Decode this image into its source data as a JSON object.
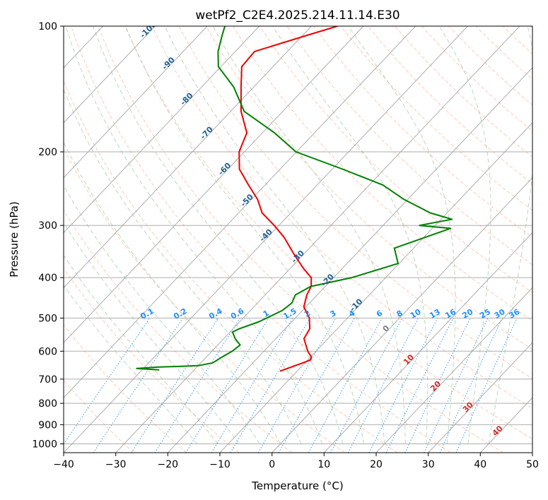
{
  "chart_data": {
    "type": "line",
    "subtype": "skew-T log-P sounding",
    "title": "wetPf2_C2E4.2025.214.11.14.E30",
    "xlabel": "Temperature (°C)",
    "ylabel": "Pressure (hPa)",
    "xlim": [
      -40,
      50
    ],
    "ylim": [
      1050,
      100
    ],
    "y_scale": "log",
    "x_ticks": [
      "−40",
      "−30",
      "−20",
      "−10",
      "0",
      "10",
      "20",
      "30",
      "40",
      "50"
    ],
    "y_ticks": [
      {
        "p": 100,
        "label": "100"
      },
      {
        "p": 200,
        "label": "200"
      },
      {
        "p": 300,
        "label": "300"
      },
      {
        "p": 400,
        "label": "400"
      },
      {
        "p": 500,
        "label": "500"
      },
      {
        "p": 600,
        "label": "600"
      },
      {
        "p": 700,
        "label": "700"
      },
      {
        "p": 800,
        "label": "800"
      },
      {
        "p": 900,
        "label": "900"
      },
      {
        "p": 1000,
        "label": "1000"
      }
    ],
    "grid": true,
    "colors": {
      "temperature": "#ee0000",
      "dewpoint": "#008000",
      "isotherm": "#a0a0a0",
      "dry_adiabat": "#ffa07a",
      "moist_adiabat": "#8fbc8f",
      "mixing_ratio": "#1e90ff"
    },
    "series": [
      {
        "key": "temperature",
        "color": "#ee0000",
        "points": [
          {
            "p": 670,
            "t": -13.3
          },
          {
            "p": 650,
            "t": -11.4
          },
          {
            "p": 640,
            "t": -10.4
          },
          {
            "p": 630,
            "t": -9.5
          },
          {
            "p": 620,
            "t": -9.8
          },
          {
            "p": 600,
            "t": -11.6
          },
          {
            "p": 560,
            "t": -14.6
          },
          {
            "p": 530,
            "t": -15.3
          },
          {
            "p": 500,
            "t": -17.3
          },
          {
            "p": 470,
            "t": -20.4
          },
          {
            "p": 440,
            "t": -22.0
          },
          {
            "p": 420,
            "t": -22.7
          },
          {
            "p": 400,
            "t": -24.3
          },
          {
            "p": 380,
            "t": -27.5
          },
          {
            "p": 350,
            "t": -32.1
          },
          {
            "p": 320,
            "t": -36.9
          },
          {
            "p": 300,
            "t": -40.9
          },
          {
            "p": 280,
            "t": -45.5
          },
          {
            "p": 260,
            "t": -48.8
          },
          {
            "p": 240,
            "t": -53.2
          },
          {
            "p": 220,
            "t": -57.8
          },
          {
            "p": 200,
            "t": -61.0
          },
          {
            "p": 180,
            "t": -63.0
          },
          {
            "p": 160,
            "t": -68.0
          },
          {
            "p": 140,
            "t": -72.4
          },
          {
            "p": 125,
            "t": -76.0
          },
          {
            "p": 115,
            "t": -76.3
          },
          {
            "p": 105,
            "t": -69.0
          },
          {
            "p": 100,
            "t": -65.0
          }
        ]
      },
      {
        "key": "dewpoint",
        "color": "#008000",
        "points": [
          {
            "p": 665,
            "t": -36.7
          },
          {
            "p": 660,
            "t": -41.3
          },
          {
            "p": 655,
            "t": -37.4
          },
          {
            "p": 650,
            "t": -30.0
          },
          {
            "p": 640,
            "t": -27.7
          },
          {
            "p": 620,
            "t": -27.0
          },
          {
            "p": 600,
            "t": -26.1
          },
          {
            "p": 580,
            "t": -25.7
          },
          {
            "p": 560,
            "t": -27.8
          },
          {
            "p": 540,
            "t": -29.5
          },
          {
            "p": 530,
            "t": -28.8
          },
          {
            "p": 510,
            "t": -26.3
          },
          {
            "p": 480,
            "t": -23.9
          },
          {
            "p": 460,
            "t": -23.4
          },
          {
            "p": 440,
            "t": -24.2
          },
          {
            "p": 420,
            "t": -22.8
          },
          {
            "p": 400,
            "t": -16.5
          },
          {
            "p": 370,
            "t": -10.2
          },
          {
            "p": 340,
            "t": -13.7
          },
          {
            "p": 305,
            "t": -6.5
          },
          {
            "p": 300,
            "t": -13.0
          },
          {
            "p": 290,
            "t": -7.9
          },
          {
            "p": 280,
            "t": -13.2
          },
          {
            "p": 260,
            "t": -20.7
          },
          {
            "p": 240,
            "t": -27.4
          },
          {
            "p": 220,
            "t": -38.0
          },
          {
            "p": 200,
            "t": -50.1
          },
          {
            "p": 180,
            "t": -57.7
          },
          {
            "p": 160,
            "t": -67.4
          },
          {
            "p": 140,
            "t": -73.8
          },
          {
            "p": 125,
            "t": -80.5
          },
          {
            "p": 115,
            "t": -83.3
          },
          {
            "p": 105,
            "t": -85.5
          },
          {
            "p": 100,
            "t": -86.6
          }
        ]
      }
    ],
    "temperature_labels": [
      {
        "t": -100,
        "p": 103,
        "text": "-100"
      },
      {
        "t": -90,
        "p": 124,
        "text": "-90"
      },
      {
        "t": -80,
        "p": 151,
        "text": "-80"
      },
      {
        "t": -70,
        "p": 182,
        "text": "-70"
      },
      {
        "t": -60,
        "p": 222,
        "text": "-60"
      },
      {
        "t": -50,
        "p": 264,
        "text": "-50"
      },
      {
        "t": -40,
        "p": 320,
        "text": "-40"
      },
      {
        "t": -30,
        "p": 360,
        "text": "-30"
      },
      {
        "t": -20,
        "p": 410,
        "text": "-20"
      },
      {
        "t": -10,
        "p": 470,
        "text": "-10"
      },
      {
        "t": 0,
        "p": 535,
        "text": "0"
      },
      {
        "t": 10,
        "p": 635,
        "text": "10"
      },
      {
        "t": 20,
        "p": 735,
        "text": "20"
      },
      {
        "t": 30,
        "p": 825,
        "text": "30"
      },
      {
        "t": 40,
        "p": 940,
        "text": "40"
      }
    ],
    "mixing_ratio_labels": [
      "0.1",
      "0.2",
      "0.4",
      "0.6",
      "1",
      "1.5",
      "2",
      "3",
      "4",
      "6",
      "8",
      "10",
      "13",
      "16",
      "20",
      "25",
      "30",
      "36"
    ]
  }
}
